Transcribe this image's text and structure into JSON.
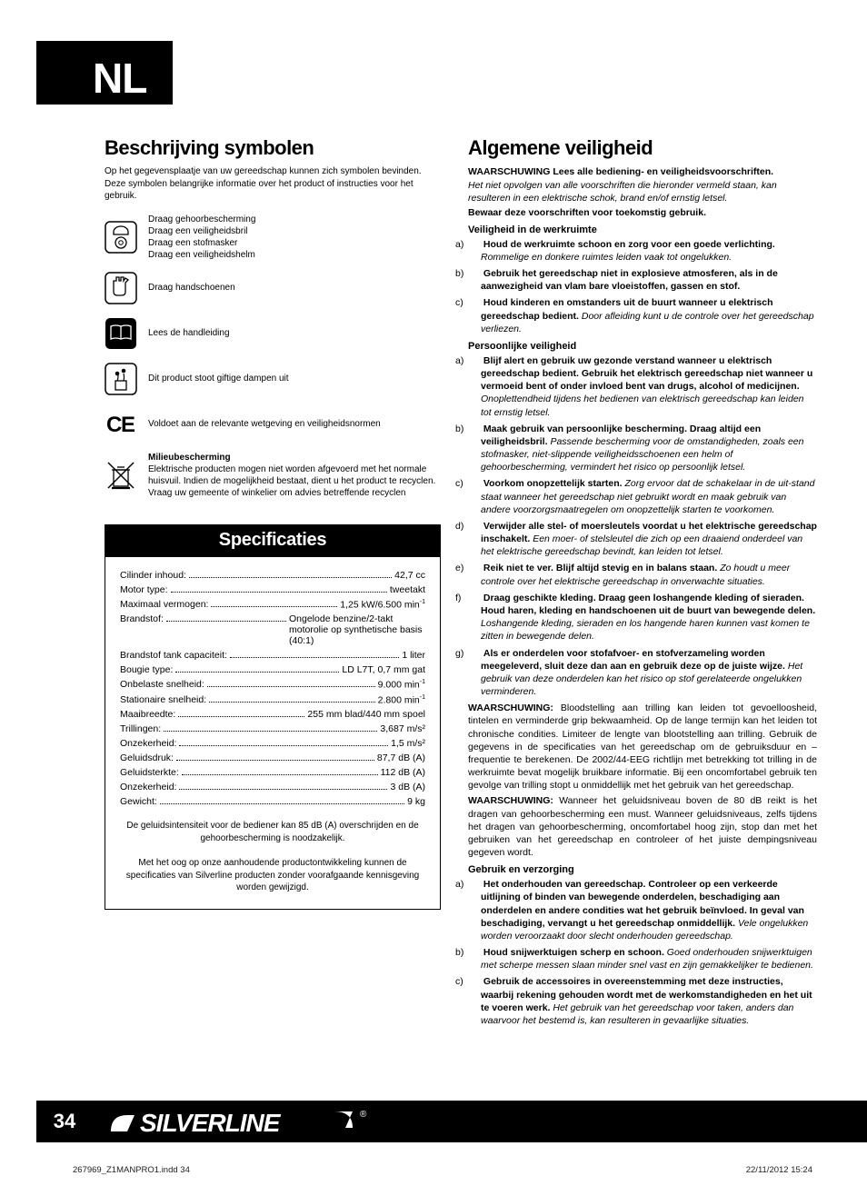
{
  "lang_code": "NL",
  "page_number": "34",
  "indd_file": "267969_Z1MANPRO1.indd   34",
  "indd_date": "22/11/2012   15:24",
  "brand": "SILVERLINE",
  "left": {
    "title": "Beschrijving symbolen",
    "intro": "Op het gegevensplaatje van uw gereedschap kunnen zich symbolen bevinden. Deze symbolen belangrijke informatie over het product of instructies voor het gebruik.",
    "symbols": [
      {
        "icon": "ppe-icon",
        "lines": [
          "Draag gehoorbescherming",
          "Draag een veiligheidsbril",
          "Draag een stofmasker",
          "Draag een veiligheidshelm"
        ]
      },
      {
        "icon": "gloves-icon",
        "lines": [
          "Draag handschoenen"
        ]
      },
      {
        "icon": "manual-icon",
        "lines": [
          "Lees de handleiding"
        ]
      },
      {
        "icon": "fumes-icon",
        "lines": [
          "Dit product stoot giftige dampen uit"
        ]
      },
      {
        "icon": "ce-icon",
        "lines": [
          "Voldoet aan de relevante wetgeving en veiligheidsnormen"
        ]
      },
      {
        "icon": "recycle-icon",
        "bold_title": "Milieubescherming",
        "lines": [
          "Elektrische producten mogen niet worden afgevoerd met het normale huisvuil. Indien de mogelijkheid bestaat, dient u het product te recyclen. Vraag uw gemeente of winkelier om advies betreffende recyclen"
        ]
      }
    ],
    "specs": {
      "header": "Specificaties",
      "rows": [
        {
          "label": "Cilinder inhoud:",
          "value": "42,7 cc"
        },
        {
          "label": "Motor type:",
          "value": "tweetakt"
        },
        {
          "label": "Maximaal vermogen:",
          "value": "1,25 kW/6.500 min",
          "sup": "-1"
        },
        {
          "label": "Brandstof:",
          "value": "Ongelode benzine/2-takt motorolie op synthetische basis (40:1)"
        },
        {
          "label": "Brandstof tank capaciteit:",
          "value": "1 liter"
        },
        {
          "label": "Bougie type:",
          "value": "LD L7T, 0,7 mm gat"
        },
        {
          "label": "Onbelaste snelheid:",
          "value": "9.000 min",
          "sup": "-1"
        },
        {
          "label": "Stationaire snelheid:",
          "value": "2.800 min",
          "sup": "-1"
        },
        {
          "label": "Maaibreedte:",
          "value": "255 mm blad/440 mm spoel"
        },
        {
          "label": "Trillingen:",
          "value": "3,687 m/s²"
        },
        {
          "label": "Onzekerheid:",
          "value": "1,5 m/s²"
        },
        {
          "label": "Geluidsdruk:",
          "value": "87,7 dB (A)"
        },
        {
          "label": "Geluidsterkte:",
          "value": "112 dB (A)"
        },
        {
          "label": "Onzekerheid:",
          "value": "3 dB (A)"
        },
        {
          "label": "Gewicht:",
          "value": "9 kg"
        }
      ],
      "note1": "De geluidsintensiteit voor de bediener kan 85 dB (A) overschrijden en de gehoorbescherming is noodzakelijk.",
      "note2": "Met het oog op onze aanhoudende productontwikkeling kunnen de specificaties van Silverline producten zonder voorafgaande kennisgeving worden gewijzigd."
    }
  },
  "right": {
    "title": "Algemene veiligheid",
    "warn1_bold": "WAARSCHUWING Lees alle bediening- en veiligheidsvoorschriften.",
    "warn1_italic": "Het niet opvolgen van alle voorschriften die hieronder vermeld staan, kan resulteren in een elektrische schok, brand en/of ernstig letsel.",
    "warn2_bold": "Bewaar deze voorschriften voor toekomstig gebruik.",
    "sections": [
      {
        "heading": "Veiligheid in de werkruimte",
        "items": [
          {
            "l": "a)",
            "b": "Houd de werkruimte schoon en zorg voor een goede verlichting.",
            "i": "Rommelige en donkere ruimtes leiden vaak tot ongelukken."
          },
          {
            "l": "b)",
            "b": "Gebruik het gereedschap niet in explosieve atmosferen, als in de aanwezigheid van vlam bare vloeistoffen, gassen en stof.",
            "i": ""
          },
          {
            "l": "c)",
            "b": "Houd kinderen en omstanders uit de buurt wanneer u elektrisch gereedschap bedient.",
            "i": "Door afleiding kunt u de controle over het gereedschap verliezen."
          }
        ]
      },
      {
        "heading": "Persoonlijke veiligheid",
        "items": [
          {
            "l": "a)",
            "b": "Blijf alert en gebruik uw gezonde verstand wanneer u elektrisch gereedschap bedient. Gebruik het elektrisch gereedschap niet wanneer u vermoeid bent of onder invloed bent van drugs, alcohol of medicijnen.",
            "i": "Onoplettendheid tijdens het bedienen van elektrisch gereedschap kan leiden tot ernstig letsel."
          },
          {
            "l": "b)",
            "b": "Maak gebruik van persoonlijke bescherming. Draag altijd een veiligheidsbril.",
            "i": "Passende bescherming voor de omstandigheden, zoals een stofmasker, niet-slippende veiligheidsschoenen een helm of gehoorbescherming, vermindert het risico op persoonlijk letsel."
          },
          {
            "l": "c)",
            "b": "Voorkom onopzettelijk starten.",
            "i": "Zorg ervoor dat de schakelaar in de uit-stand staat wanneer het gereedschap niet gebruikt wordt en maak gebruik van andere voorzorgsmaatregelen om onopzettelijk starten te voorkomen."
          },
          {
            "l": "d)",
            "b": "Verwijder alle stel- of moersleutels voordat u het elektrische gereedschap inschakelt.",
            "i": "Een moer- of stelsleutel die zich op een draaiend onderdeel van het elektrische gereedschap bevindt, kan leiden tot letsel."
          },
          {
            "l": "e)",
            "b": "Reik niet te ver. Blijf altijd stevig en in balans staan.",
            "i": "Zo houdt u meer controle over het elektrische gereedschap in onverwachte situaties."
          },
          {
            "l": "f)",
            "b": "Draag geschikte kleding. Draag geen loshangende kleding of sieraden. Houd haren, kleding en handschoenen uit de buurt van bewegende delen.",
            "i": "Loshangende kleding, sieraden en los hangende haren kunnen vast komen te zitten in bewegende delen."
          },
          {
            "l": "g)",
            "b": "Als er onderdelen voor stofafvoer- en stofverzameling worden meegeleverd, sluit deze dan aan en gebruik deze op de juiste wijze.",
            "i": "Het gebruik van deze onderdelen kan het risico op stof gerelateerde ongelukken verminderen."
          }
        ]
      }
    ],
    "para1_bold": "WAARSCHUWING:",
    "para1": " Bloodstelling aan trilling kan leiden tot gevoelloosheid, tintelen en verminderde grip bekwaamheid. Op de lange termijn kan het leiden tot chronische condities. Limiteer de lengte van blootstelling aan trilling. Gebruik de gegevens in de specificaties van het gereedschap om de gebruiksduur en –frequentie te berekenen. De 2002/44-EEG richtlijn met betrekking tot trilling in de werkruimte bevat mogelijk bruikbare informatie. Bij een oncomfortabel gebruik ten gevolge van trilling stopt u onmiddellijk met het gebruik van het gereedschap.",
    "para2_bold": "WAARSCHUWING:",
    "para2": " Wanneer het geluidsniveau boven de 80 dB reikt is het dragen van gehoorbescherming een must. Wanneer geluidsniveaus, zelfs tijdens het dragen van gehoorbescherming, oncomfortabel hoog zijn, stop dan met het gebruiken van het gereedschap en controleer of het juiste dempingsniveau gegeven wordt.",
    "section3": {
      "heading": "Gebruik en verzorging",
      "items": [
        {
          "l": "a)",
          "b": "Het onderhouden van gereedschap. Controleer op een verkeerde uitlijning of binden van bewegende onderdelen, beschadiging aan onderdelen en andere condities wat het gebruik beïnvloed. In geval van beschadiging, vervangt u het gereedschap onmiddellijk.",
          "i": "Vele ongelukken worden veroorzaakt door slecht onderhouden gereedschap."
        },
        {
          "l": "b)",
          "b": "Houd snijwerktuigen scherp en schoon.",
          "i": "Goed onderhouden snijwerktuigen met scherpe messen slaan minder snel vast en zijn gemakkelijker te bedienen."
        },
        {
          "l": "c)",
          "b": "Gebruik de accessoires in overeenstemming met deze instructies, waarbij rekening gehouden wordt met de werkomstandigheden en het uit te voeren werk.",
          "i": "Het gebruik van het gereedschap voor taken, anders dan waarvoor het bestemd is, kan resulteren in gevaarlijke situaties."
        }
      ]
    }
  },
  "colors": {
    "black": "#000000",
    "white": "#ffffff"
  }
}
